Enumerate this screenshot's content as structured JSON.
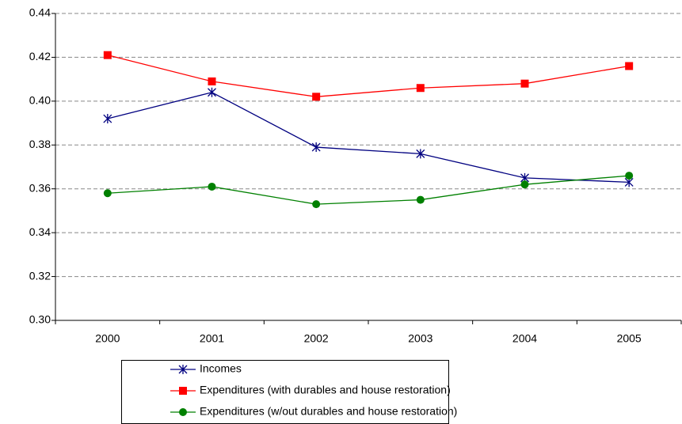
{
  "chart_data": {
    "type": "line",
    "categories": [
      "2000",
      "2001",
      "2002",
      "2003",
      "2004",
      "2005"
    ],
    "series": [
      {
        "name": "Incomes",
        "color": "#000080",
        "marker": "star",
        "values": [
          0.392,
          0.404,
          0.379,
          0.376,
          0.365,
          0.363
        ]
      },
      {
        "name": "Expenditures (with durables and house restoration)",
        "color": "#ff0000",
        "marker": "square",
        "values": [
          0.421,
          0.409,
          0.402,
          0.406,
          0.408,
          0.416
        ]
      },
      {
        "name": "Expenditures (w/out durables and house restoration)",
        "color": "#008000",
        "marker": "circle",
        "values": [
          0.358,
          0.361,
          0.353,
          0.355,
          0.362,
          0.366
        ]
      }
    ],
    "ylim": [
      0.3,
      0.44
    ],
    "yticks": [
      {
        "value": 0.3,
        "label": "0.30"
      },
      0.32,
      0.34,
      0.36,
      0.38,
      {
        "value": 0.4,
        "label": "0.40"
      },
      0.42,
      0.44
    ],
    "grid": true,
    "legend": "bottom"
  }
}
